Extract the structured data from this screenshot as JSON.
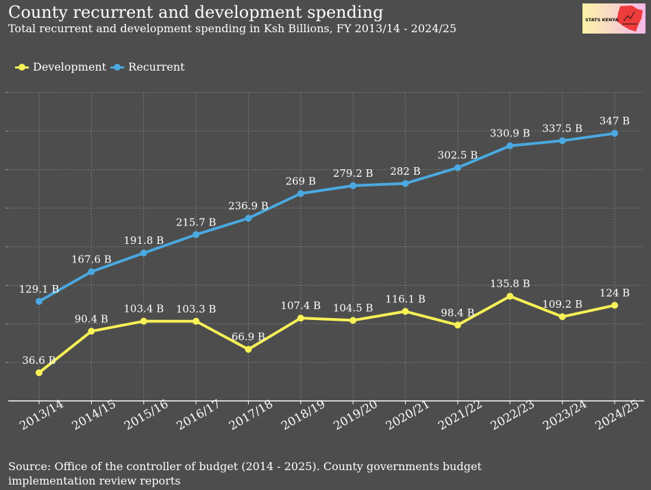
{
  "title": "County recurrent and development spending",
  "subtitle": "Total recurrent and development spending in Ksh Billions, FY 2013/14 - 2024/25",
  "logo_text": "STATS KENYA",
  "source": "Source: Office of the controller of budget (2014 - 2025). County governments budget implementation review reports",
  "chart_data": {
    "type": "line",
    "categories": [
      "2013/14",
      "2014/15",
      "2015/16",
      "2016/17",
      "2017/18",
      "2018/19",
      "2019/20",
      "2020/21",
      "2021/22",
      "2022/23",
      "2023/24",
      "2024/25"
    ],
    "series": [
      {
        "name": "Development",
        "color": "#f7f256",
        "values": [
          36.6,
          90.4,
          103.4,
          103.3,
          66.9,
          107.4,
          104.5,
          116.1,
          98.4,
          135.8,
          109.2,
          124
        ],
        "labels": [
          "36.6 B",
          "90.4 B",
          "103.4 B",
          "103.3 B",
          "66.9 B",
          "107.4 B",
          "104.5 B",
          "116.1 B",
          "98.4 B",
          "135.8 B",
          "109.2 B",
          "124 B"
        ]
      },
      {
        "name": "Recurrent",
        "color": "#4aa9e0",
        "values": [
          129.1,
          167.6,
          191.8,
          215.7,
          236.9,
          269,
          279.2,
          282,
          302.5,
          330.9,
          337.5,
          347
        ],
        "labels": [
          "129.1 B",
          "167.6 B",
          "191.8 B",
          "215.7 B",
          "236.9 B",
          "269 B",
          "279.2 B",
          "282 B",
          "302.5 B",
          "330.9 B",
          "337.5 B",
          "347 B"
        ]
      }
    ],
    "ylim": [
      0,
      400
    ],
    "y_grid_step": 50,
    "y_tick_labels_shown": false,
    "grid": true,
    "legend": "top-left",
    "unit": "Ksh Billions"
  }
}
